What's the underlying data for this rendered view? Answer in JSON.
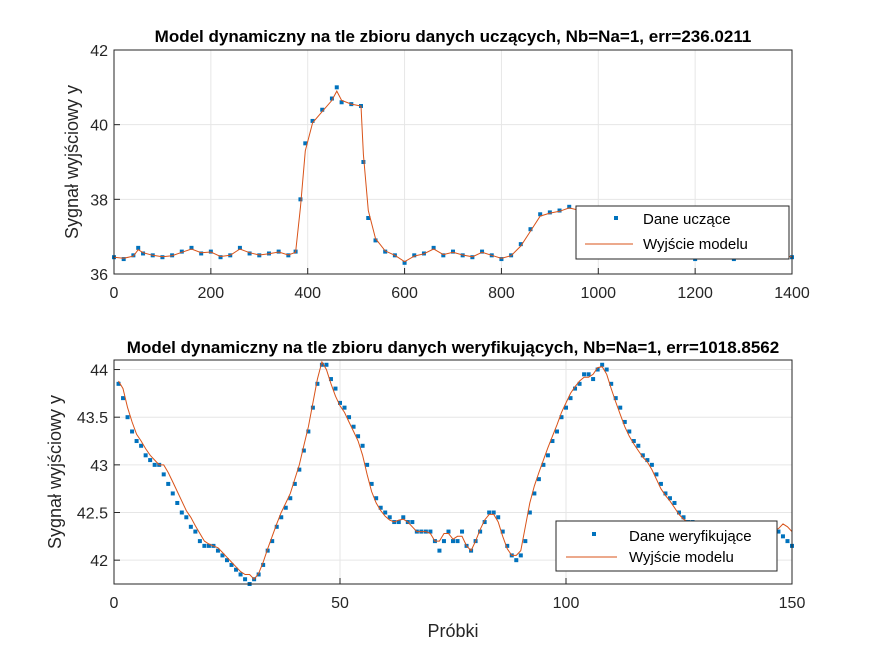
{
  "colors": {
    "data": "#0072BD",
    "model": "#D95319",
    "grid": "#e6e6e6",
    "axis": "#262626"
  },
  "chart_data": [
    {
      "type": "scatter",
      "title": "Model dynamiczny na tle zbioru danych uczących, Nb=Na=1, err=236.0211",
      "xlabel": "",
      "ylabel": "Sygnał wyjściowy y",
      "xlim": [
        0,
        1400
      ],
      "ylim": [
        36,
        42
      ],
      "xticks": [
        0,
        200,
        400,
        600,
        800,
        1000,
        1200,
        1400
      ],
      "xtick_labels": [
        "0",
        "200",
        "400",
        "600",
        "800",
        "1000",
        "1200",
        "1400"
      ],
      "yticks": [
        36,
        38,
        40,
        42
      ],
      "ytick_labels": [
        "36",
        "38",
        "40",
        "42"
      ],
      "grid": true,
      "legend_placement": "bottom-right",
      "series": [
        {
          "name": "Dane uczące",
          "style": "markers",
          "x": [
            0,
            20,
            40,
            50,
            60,
            80,
            100,
            120,
            140,
            160,
            180,
            200,
            220,
            240,
            260,
            280,
            300,
            320,
            340,
            360,
            375,
            385,
            395,
            410,
            430,
            450,
            460,
            470,
            490,
            510,
            515,
            525,
            540,
            560,
            580,
            600,
            620,
            640,
            660,
            680,
            700,
            720,
            740,
            760,
            780,
            800,
            820,
            840,
            860,
            880,
            900,
            920,
            940,
            960,
            980,
            1000,
            1040,
            1080,
            1120,
            1160,
            1200,
            1240,
            1280,
            1320,
            1360,
            1400
          ],
          "y": [
            36.45,
            36.4,
            36.5,
            36.7,
            36.55,
            36.5,
            36.45,
            36.5,
            36.6,
            36.7,
            36.55,
            36.6,
            36.45,
            36.5,
            36.7,
            36.55,
            36.5,
            36.55,
            36.6,
            36.5,
            36.6,
            38.0,
            39.5,
            40.1,
            40.4,
            40.7,
            41.0,
            40.6,
            40.55,
            40.5,
            39.0,
            37.5,
            36.9,
            36.6,
            36.5,
            36.3,
            36.5,
            36.55,
            36.7,
            36.5,
            36.6,
            36.5,
            36.45,
            36.6,
            36.5,
            36.4,
            36.5,
            36.8,
            37.2,
            37.6,
            37.65,
            37.7,
            37.8,
            37.7,
            37.65,
            37.5,
            37.0,
            36.8,
            36.5,
            36.45,
            36.4,
            36.5,
            36.4,
            36.45,
            36.5,
            36.45
          ]
        },
        {
          "name": "Wyjście modelu",
          "style": "line",
          "x": [
            0,
            20,
            40,
            50,
            60,
            80,
            100,
            120,
            140,
            160,
            180,
            200,
            220,
            240,
            260,
            280,
            300,
            320,
            340,
            360,
            375,
            385,
            395,
            410,
            430,
            450,
            460,
            470,
            490,
            510,
            515,
            525,
            540,
            560,
            580,
            600,
            620,
            640,
            660,
            680,
            700,
            720,
            740,
            760,
            780,
            800,
            820,
            840,
            860,
            880,
            900,
            920,
            940,
            960,
            980,
            1000,
            1040,
            1080,
            1120,
            1160,
            1200,
            1240,
            1280,
            1320,
            1360,
            1400
          ],
          "y": [
            36.45,
            36.42,
            36.48,
            36.65,
            36.57,
            36.5,
            36.46,
            36.49,
            36.58,
            36.67,
            36.57,
            36.59,
            36.47,
            36.5,
            36.67,
            36.57,
            36.51,
            36.54,
            36.59,
            36.51,
            36.58,
            37.8,
            39.3,
            40.05,
            40.35,
            40.65,
            40.9,
            40.65,
            40.55,
            40.5,
            39.2,
            37.7,
            36.95,
            36.62,
            36.5,
            36.33,
            36.48,
            36.54,
            36.67,
            36.52,
            36.58,
            36.51,
            36.46,
            36.58,
            36.5,
            36.42,
            36.49,
            36.75,
            37.15,
            37.55,
            37.63,
            37.68,
            37.77,
            37.71,
            37.66,
            37.52,
            37.05,
            36.82,
            36.53,
            36.46,
            36.41,
            36.49,
            36.42,
            36.45,
            36.49,
            36.46
          ]
        }
      ]
    },
    {
      "type": "scatter",
      "title": "Model dynamiczny na tle zbioru danych weryfikujących, Nb=Na=1, err=1018.8562",
      "xlabel": "Próbki",
      "ylabel": "Sygnał wyjściowy y",
      "xlim": [
        0,
        150
      ],
      "ylim": [
        41.75,
        44.1
      ],
      "xticks": [
        0,
        50,
        100,
        150
      ],
      "xtick_labels": [
        "0",
        "50",
        "100",
        "150"
      ],
      "yticks": [
        42,
        42.5,
        43,
        43.5,
        44
      ],
      "ytick_labels": [
        "42",
        "42.5",
        "43",
        "43.5",
        "44"
      ],
      "grid": true,
      "legend_placement": "bottom-right",
      "series": [
        {
          "name": "Dane weryfikujące",
          "style": "markers",
          "x": [
            1,
            2,
            3,
            4,
            5,
            6,
            7,
            8,
            9,
            10,
            11,
            12,
            13,
            14,
            15,
            16,
            17,
            18,
            19,
            20,
            21,
            22,
            23,
            24,
            25,
            26,
            27,
            28,
            29,
            30,
            31,
            32,
            33,
            34,
            35,
            36,
            37,
            38,
            39,
            40,
            41,
            42,
            43,
            44,
            45,
            46,
            47,
            48,
            49,
            50,
            51,
            52,
            53,
            54,
            55,
            56,
            57,
            58,
            59,
            60,
            61,
            62,
            63,
            64,
            65,
            66,
            67,
            68,
            69,
            70,
            71,
            72,
            73,
            74,
            75,
            76,
            77,
            78,
            79,
            80,
            81,
            82,
            83,
            84,
            85,
            86,
            87,
            88,
            89,
            90,
            91,
            92,
            93,
            94,
            95,
            96,
            97,
            98,
            99,
            100,
            101,
            102,
            103,
            104,
            105,
            106,
            107,
            108,
            109,
            110,
            111,
            112,
            113,
            114,
            115,
            116,
            117,
            118,
            119,
            120,
            121,
            122,
            123,
            124,
            125,
            126,
            127,
            128,
            129,
            130,
            131,
            132,
            133,
            134,
            135,
            136,
            137,
            138,
            139,
            140,
            141,
            142,
            143,
            144,
            145,
            146,
            147,
            148,
            149,
            150
          ],
          "y": [
            43.85,
            43.7,
            43.5,
            43.35,
            43.25,
            43.2,
            43.1,
            43.05,
            43.0,
            43.0,
            42.9,
            42.8,
            42.7,
            42.6,
            42.5,
            42.45,
            42.35,
            42.3,
            42.2,
            42.15,
            42.15,
            42.15,
            42.1,
            42.05,
            42.0,
            41.95,
            41.9,
            41.85,
            41.8,
            41.75,
            41.8,
            41.85,
            41.95,
            42.1,
            42.2,
            42.35,
            42.45,
            42.55,
            42.65,
            42.8,
            42.95,
            43.15,
            43.35,
            43.6,
            43.85,
            44.05,
            44.05,
            43.9,
            43.8,
            43.65,
            43.6,
            43.5,
            43.4,
            43.3,
            43.2,
            43.0,
            42.8,
            42.65,
            42.55,
            42.5,
            42.45,
            42.4,
            42.4,
            42.45,
            42.4,
            42.4,
            42.3,
            42.3,
            42.3,
            42.3,
            42.2,
            42.1,
            42.2,
            42.3,
            42.2,
            42.2,
            42.3,
            42.15,
            42.1,
            42.2,
            42.3,
            42.4,
            42.5,
            42.5,
            42.45,
            42.3,
            42.15,
            42.05,
            42.0,
            42.05,
            42.2,
            42.5,
            42.7,
            42.85,
            43.0,
            43.1,
            43.25,
            43.35,
            43.5,
            43.6,
            43.7,
            43.8,
            43.85,
            43.95,
            43.95,
            43.9,
            44.0,
            44.05,
            44.0,
            43.85,
            43.7,
            43.6,
            43.45,
            43.35,
            43.25,
            43.2,
            43.1,
            43.05,
            43.0,
            42.9,
            42.8,
            42.7,
            42.65,
            42.6,
            42.5,
            42.45,
            42.4,
            42.4,
            42.3,
            42.3,
            42.25,
            42.2,
            42.2,
            42.2,
            42.25,
            42.3,
            42.3,
            42.35,
            42.35,
            42.3,
            42.3,
            42.3,
            42.3,
            42.3,
            42.35,
            42.3,
            42.3,
            42.25,
            42.2,
            42.15
          ]
        },
        {
          "name": "Wyjście modelu",
          "style": "line",
          "x": [
            1,
            2,
            3,
            4,
            5,
            6,
            7,
            8,
            9,
            10,
            11,
            12,
            13,
            14,
            15,
            16,
            17,
            18,
            19,
            20,
            21,
            22,
            23,
            24,
            25,
            26,
            27,
            28,
            29,
            30,
            31,
            32,
            33,
            34,
            35,
            36,
            37,
            38,
            39,
            40,
            41,
            42,
            43,
            44,
            45,
            46,
            47,
            48,
            49,
            50,
            51,
            52,
            53,
            54,
            55,
            56,
            57,
            58,
            59,
            60,
            61,
            62,
            63,
            64,
            65,
            66,
            67,
            68,
            69,
            70,
            71,
            72,
            73,
            74,
            75,
            76,
            77,
            78,
            79,
            80,
            81,
            82,
            83,
            84,
            85,
            86,
            87,
            88,
            89,
            90,
            91,
            92,
            93,
            94,
            95,
            96,
            97,
            98,
            99,
            100,
            101,
            102,
            103,
            104,
            105,
            106,
            107,
            108,
            109,
            110,
            111,
            112,
            113,
            114,
            115,
            116,
            117,
            118,
            119,
            120,
            121,
            122,
            123,
            124,
            125,
            126,
            127,
            128,
            129,
            130,
            131,
            132,
            133,
            134,
            135,
            136,
            137,
            138,
            139,
            140,
            141,
            142,
            143,
            144,
            145,
            146,
            147,
            148,
            149,
            150
          ],
          "y": [
            43.88,
            43.8,
            43.6,
            43.45,
            43.32,
            43.25,
            43.17,
            43.1,
            43.05,
            43.0,
            43.0,
            42.92,
            42.82,
            42.72,
            42.62,
            42.52,
            42.45,
            42.36,
            42.28,
            42.2,
            42.17,
            42.15,
            42.13,
            42.08,
            42.03,
            41.98,
            41.93,
            41.88,
            41.85,
            41.85,
            41.8,
            41.86,
            41.98,
            42.12,
            42.25,
            42.38,
            42.5,
            42.6,
            42.7,
            42.85,
            43.0,
            43.2,
            43.4,
            43.65,
            43.9,
            44.08,
            44.0,
            43.85,
            43.72,
            43.62,
            43.55,
            43.45,
            43.35,
            43.25,
            43.1,
            42.9,
            42.72,
            42.6,
            42.52,
            42.46,
            42.42,
            42.4,
            42.42,
            42.43,
            42.4,
            42.35,
            42.3,
            42.3,
            42.3,
            42.28,
            42.2,
            42.2,
            42.28,
            42.28,
            42.22,
            42.25,
            42.25,
            42.15,
            42.1,
            42.2,
            42.32,
            42.42,
            42.48,
            42.48,
            42.4,
            42.25,
            42.12,
            42.05,
            42.05,
            42.1,
            42.35,
            42.6,
            42.78,
            42.92,
            43.05,
            43.18,
            43.3,
            43.42,
            43.55,
            43.65,
            43.75,
            43.82,
            43.88,
            43.92,
            43.92,
            43.95,
            44.02,
            44.03,
            43.95,
            43.8,
            43.66,
            43.53,
            43.4,
            43.3,
            43.22,
            43.15,
            43.08,
            43.03,
            42.95,
            42.85,
            42.75,
            42.68,
            42.62,
            42.55,
            42.48,
            42.43,
            42.4,
            42.37,
            42.32,
            42.28,
            42.24,
            42.21,
            42.2,
            42.22,
            42.27,
            42.3,
            42.32,
            42.33,
            42.32,
            42.3,
            42.3,
            42.3,
            42.3,
            42.32,
            42.33,
            42.32,
            42.33,
            42.38,
            42.35,
            42.3
          ]
        }
      ]
    }
  ]
}
